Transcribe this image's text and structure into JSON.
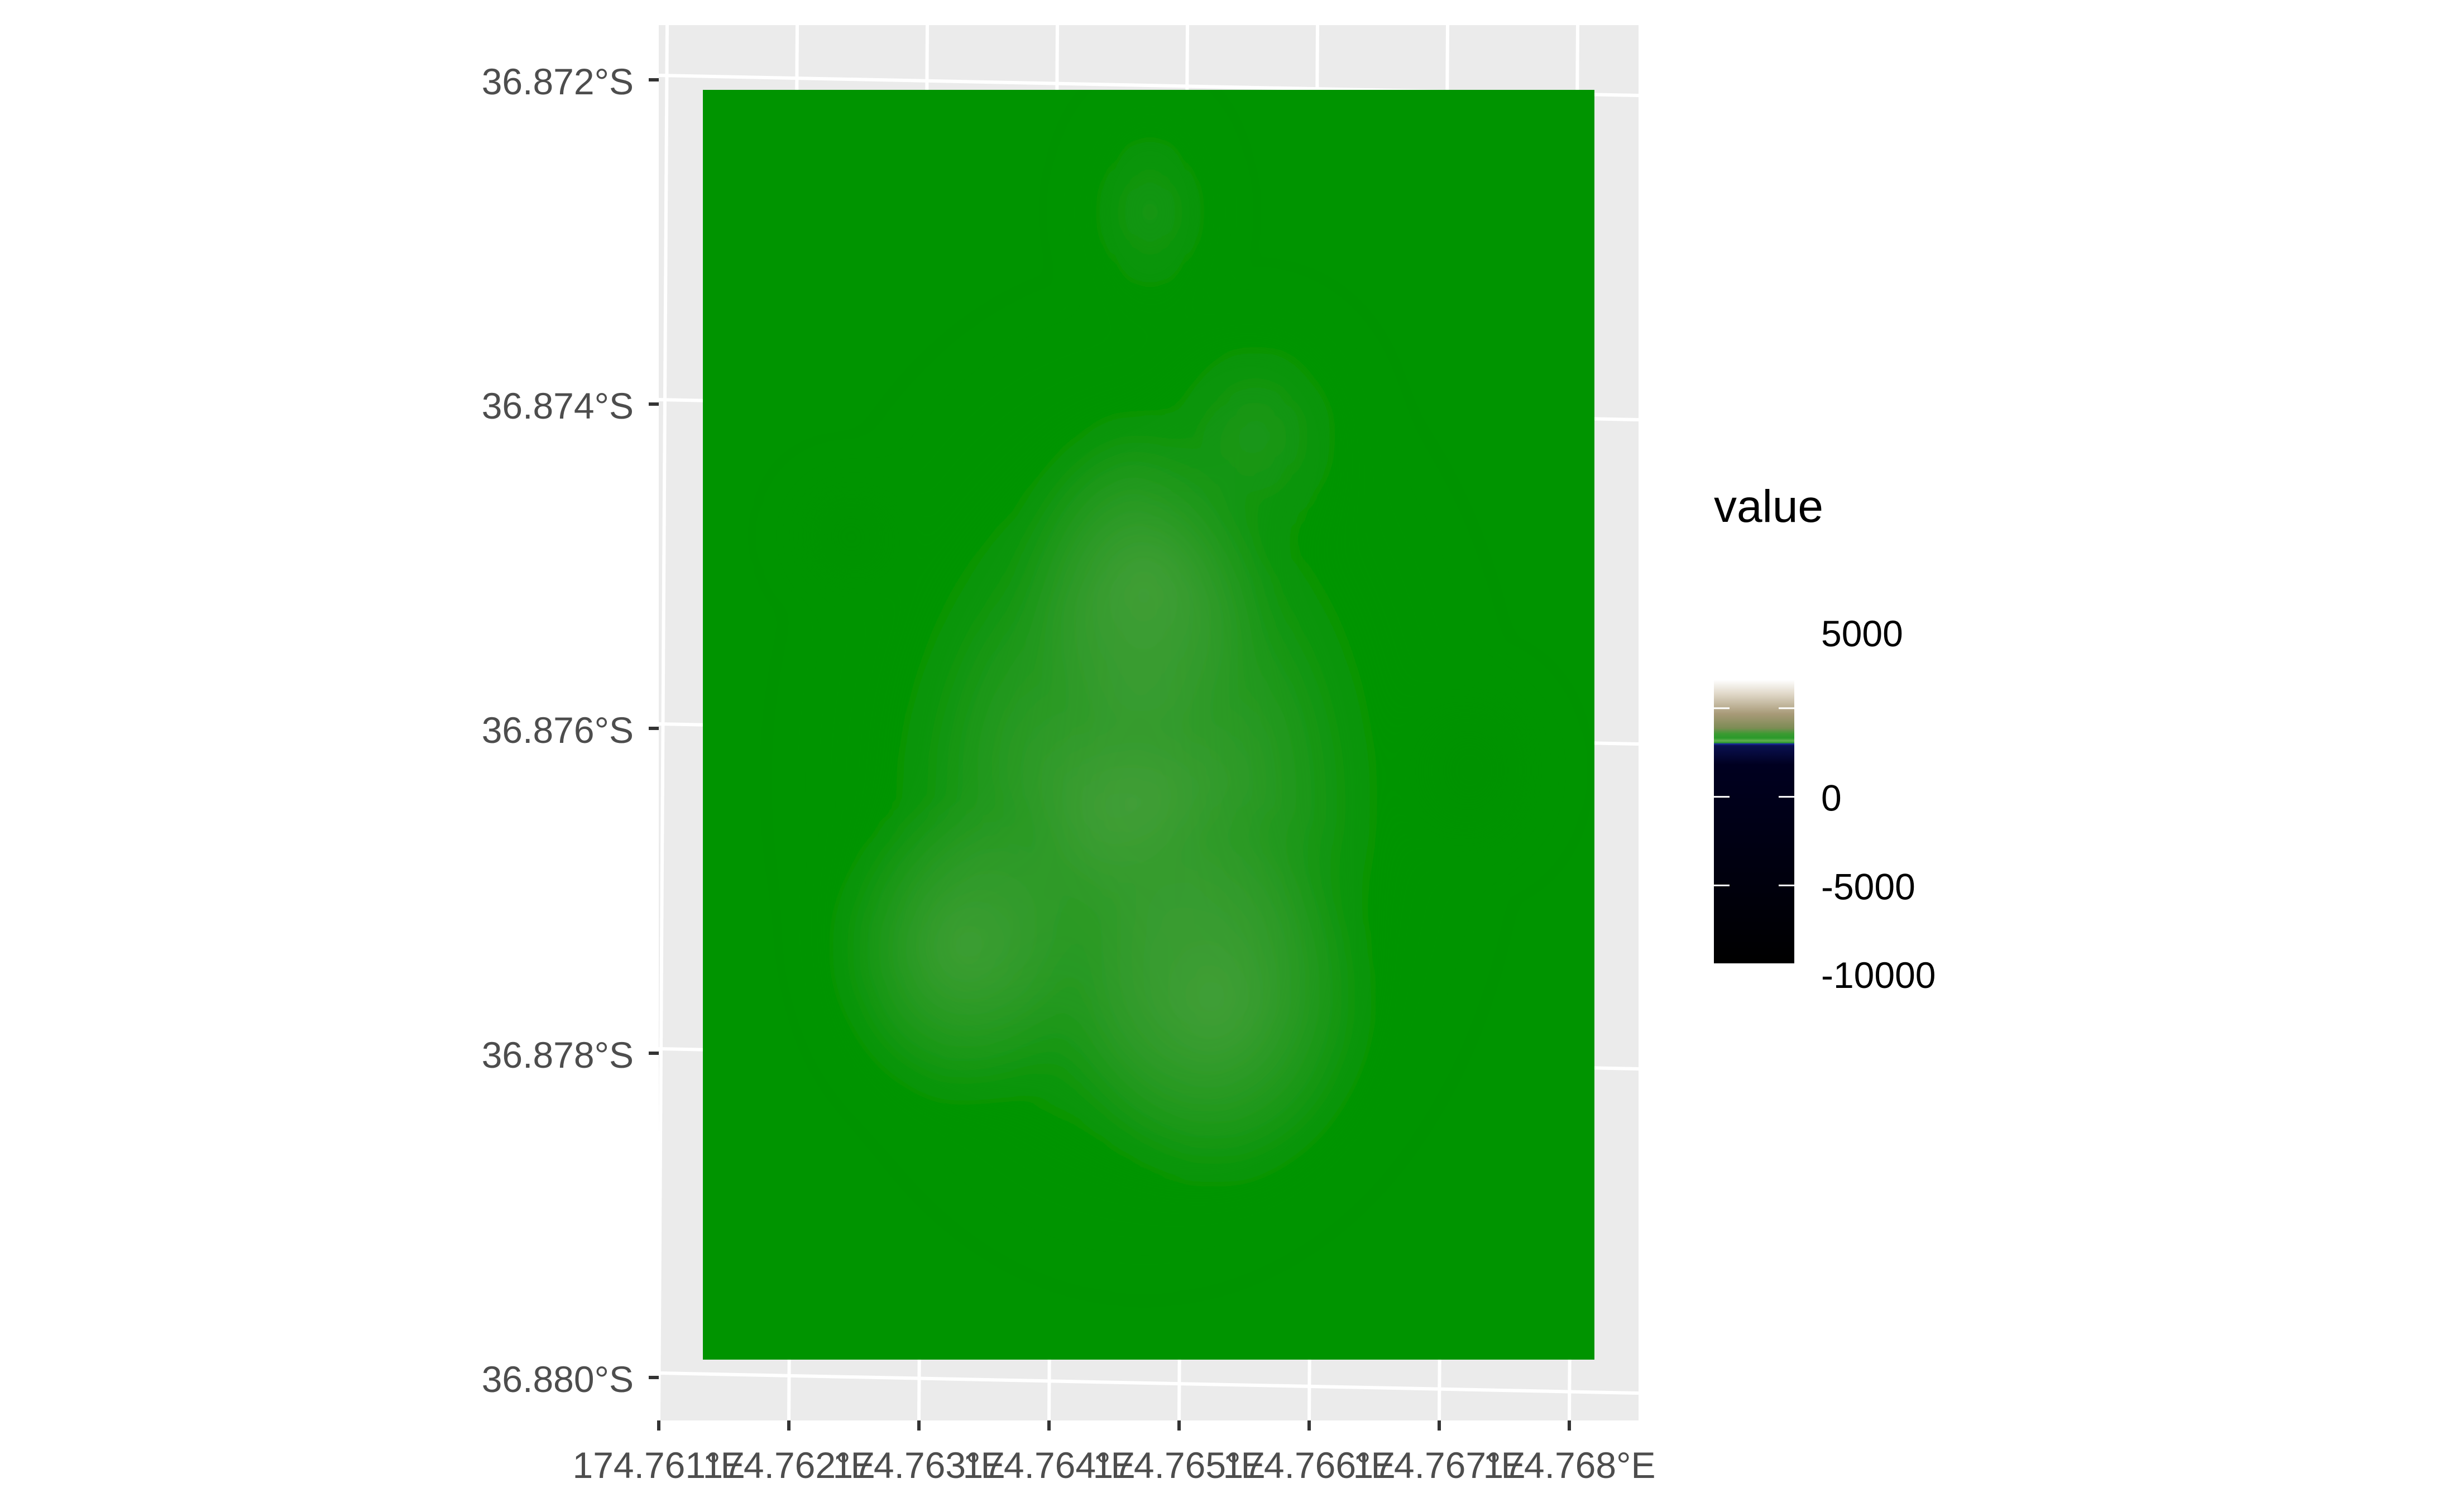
{
  "map": {
    "x_tick_labels": [
      "174.761°E",
      "174.762°E",
      "174.763°E",
      "174.764°E",
      "174.765°E",
      "174.766°E",
      "174.767°E",
      "174.768°E"
    ],
    "y_tick_labels": [
      "36.872°S",
      "36.874°S",
      "36.876°S",
      "36.878°S",
      "36.880°S"
    ],
    "panel_background": "#ebebeb",
    "gridline_color": "#ffffff",
    "raster_base_color": "#009400",
    "raster_highlight_color": "#48a03c"
  },
  "legend": {
    "title": "value",
    "labels": [
      "5000",
      "0",
      "-5000",
      "-10000"
    ],
    "colors": {
      "top": "#ece6d8",
      "upper_mid": "#7d8c55",
      "land": "#2a9a2a",
      "shore": "#1a2aa0",
      "deep": "#000010"
    }
  },
  "chart_data": {
    "type": "heatmap",
    "title": "",
    "xlabel": "",
    "ylabel": "",
    "x_ticks": [
      174.761,
      174.762,
      174.763,
      174.764,
      174.765,
      174.766,
      174.767,
      174.768
    ],
    "y_ticks": [
      -36.872,
      -36.874,
      -36.876,
      -36.878,
      -36.88
    ],
    "xlim": [
      174.761,
      174.768
    ],
    "ylim": [
      -36.88,
      -36.872
    ],
    "legend_title": "value",
    "legend_breaks": [
      5000,
      0,
      -5000,
      -10000
    ],
    "legend_position": "right",
    "grid": true
  }
}
